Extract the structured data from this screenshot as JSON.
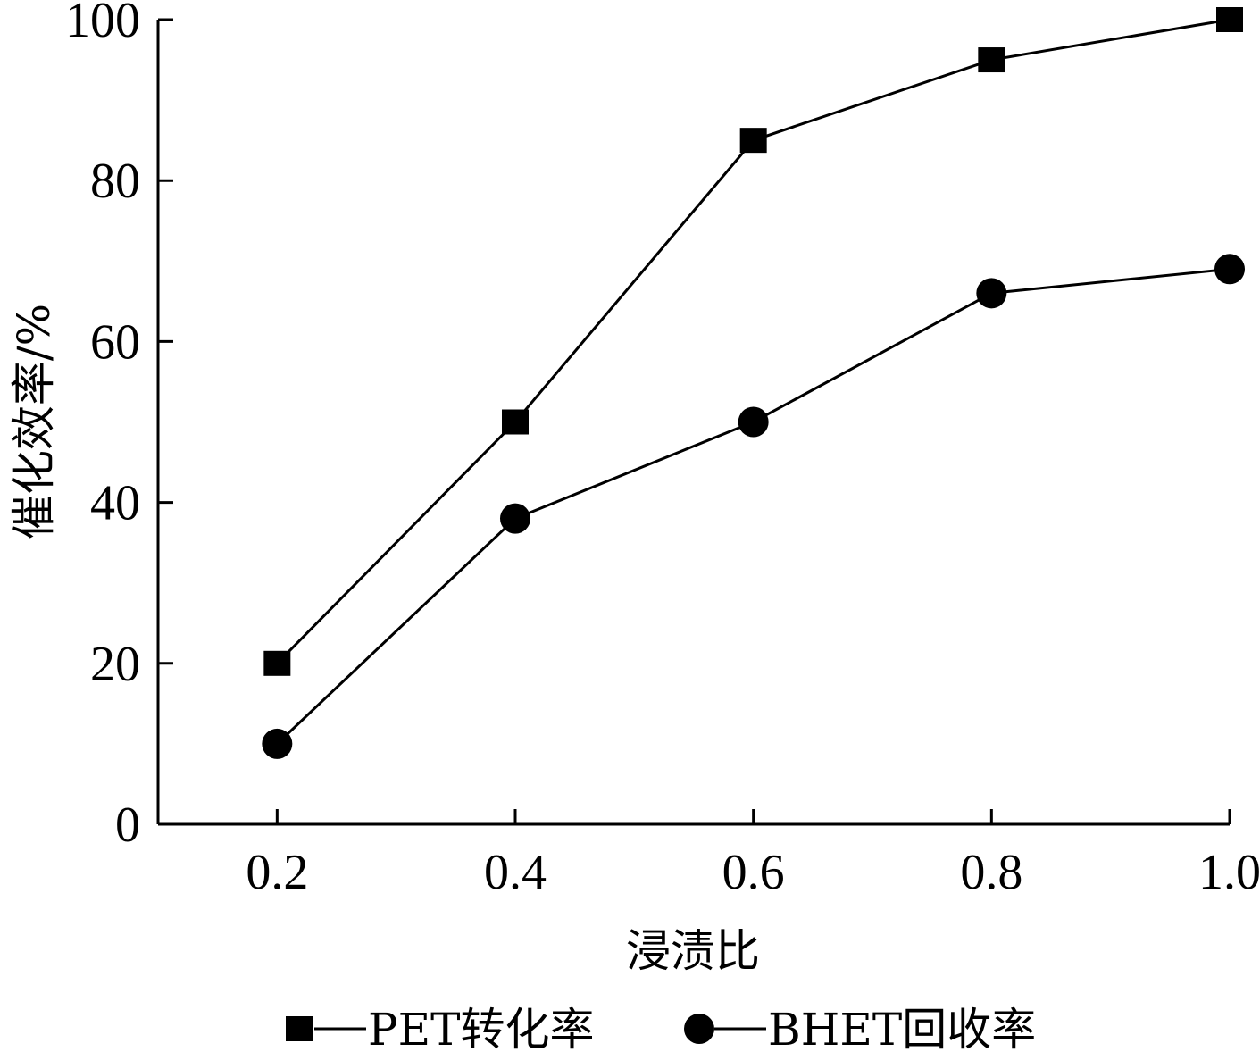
{
  "chart_data": {
    "type": "line",
    "x": [
      0.2,
      0.4,
      0.6,
      0.8,
      1.0
    ],
    "x_tick_labels": [
      "0.2",
      "0.4",
      "0.6",
      "0.8",
      "1.0"
    ],
    "y_ticks": [
      0,
      20,
      40,
      60,
      80,
      100
    ],
    "y_tick_labels": [
      "0",
      "20",
      "40",
      "60",
      "80",
      "100"
    ],
    "xlabel": "浸渍比",
    "ylabel": "催化效率/%",
    "xlim": [
      0.1,
      1.0
    ],
    "ylim": [
      0,
      100
    ],
    "grid": false,
    "legend_position": "bottom",
    "series": [
      {
        "name": "PET转化率",
        "marker": "square",
        "values": [
          20,
          50,
          85,
          95,
          100
        ]
      },
      {
        "name": "BHET回收率",
        "marker": "circle",
        "values": [
          10,
          38,
          50,
          66,
          69
        ]
      }
    ],
    "colors": {
      "line": "#000000",
      "marker": "#000000"
    }
  }
}
